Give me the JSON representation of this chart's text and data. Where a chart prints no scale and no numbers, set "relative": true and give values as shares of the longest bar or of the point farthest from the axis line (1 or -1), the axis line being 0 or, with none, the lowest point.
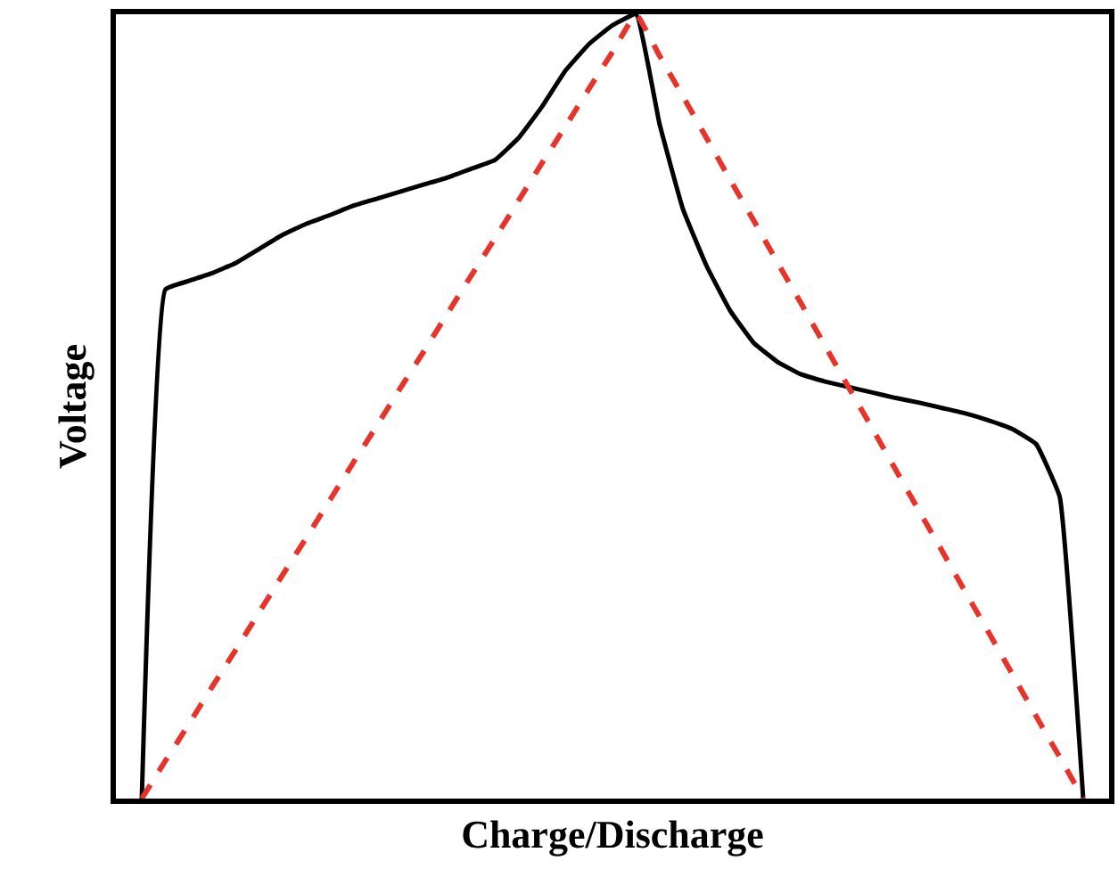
{
  "chart_data": {
    "type": "line",
    "relative": true,
    "xlabel": "Charge/Discharge",
    "ylabel": "Voltage",
    "legend": false,
    "marker": "none",
    "categories": [
      null,
      null,
      null,
      null,
      null,
      null,
      null,
      null,
      null,
      null,
      null,
      null,
      null,
      null,
      null,
      null,
      null,
      null,
      null,
      null,
      null,
      null,
      null,
      null,
      null,
      null,
      null,
      null,
      null,
      null,
      null,
      null,
      null,
      null,
      null,
      null,
      null,
      null,
      null,
      null,
      null
    ],
    "series": [
      {
        "color": "#000000",
        "line_style": "solid",
        "values": [
          0,
          0.649,
          0.66,
          0.67,
          0.683,
          0.701,
          0.719,
          0.733,
          0.744,
          0.756,
          0.765,
          0.774,
          0.783,
          0.792,
          0.803,
          0.814,
          0.842,
          0.882,
          0.928,
          0.962,
          0.986,
          1,
          0.86,
          0.751,
          0.679,
          0.622,
          0.581,
          0.557,
          0.541,
          0.532,
          0.525,
          0.518,
          0.511,
          0.505,
          0.498,
          0.491,
          0.482,
          0.471,
          0.452,
          0.385,
          0
        ]
      },
      {
        "color": "#e8332b",
        "line_style": "dashed",
        "values": [
          0,
          0.048,
          0.095,
          0.143,
          0.19,
          0.238,
          0.286,
          0.333,
          0.381,
          0.429,
          0.476,
          0.524,
          0.571,
          0.619,
          0.667,
          0.714,
          0.762,
          0.81,
          0.857,
          0.905,
          0.952,
          1,
          0.947,
          0.895,
          0.842,
          0.789,
          0.737,
          0.684,
          0.632,
          0.579,
          0.526,
          0.474,
          0.421,
          0.368,
          0.316,
          0.263,
          0.211,
          0.158,
          0.105,
          0.053,
          0
        ]
      }
    ]
  }
}
